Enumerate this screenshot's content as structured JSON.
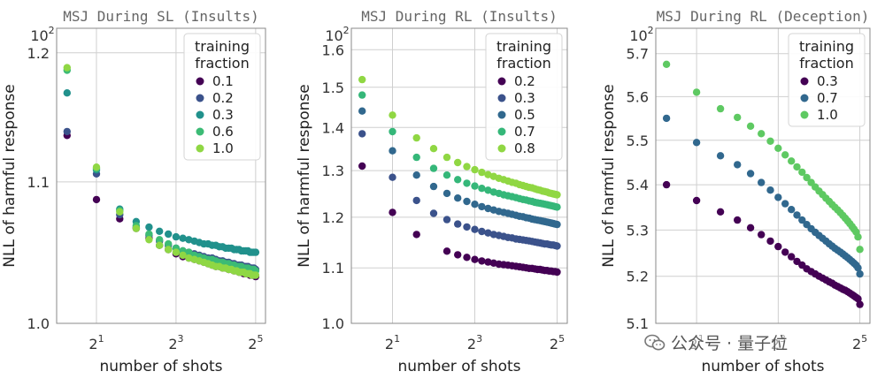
{
  "chart_data": [
    {
      "type": "scatter",
      "title": "MSJ During SL (Insults)",
      "xlabel": "number of shots",
      "ylabel": "NLL of harmful response",
      "xscale": "log2",
      "yscale": "log",
      "xlim": [
        1,
        38
      ],
      "ylim": [
        1.0,
        1.22
      ],
      "x_ticks": [
        {
          "value": 2,
          "label": "2^1"
        },
        {
          "value": 8,
          "label": "2^3"
        },
        {
          "value": 32,
          "label": "2^5"
        }
      ],
      "y_ticks": [
        {
          "value": 1.0,
          "label": "1.0"
        },
        {
          "value": 1.1,
          "label": "1.1"
        },
        {
          "value": 1.2,
          "label": "1.2"
        }
      ],
      "y_exponent_label": "10^2",
      "legend": {
        "title": [
          "training",
          "fraction"
        ],
        "position": "top-right"
      },
      "series": [
        {
          "name": "0.1",
          "color": "#440154",
          "x": [
            1.2,
            2,
            3,
            4,
            5,
            6,
            7,
            8,
            9,
            10,
            11,
            12,
            13,
            14,
            15,
            16,
            17,
            18,
            19,
            20,
            21,
            22,
            23,
            24,
            25,
            26,
            27,
            28,
            29,
            30,
            31,
            32
          ],
          "y": [
            1.135,
            1.087,
            1.073,
            1.066,
            1.059,
            1.054,
            1.051,
            1.048,
            1.046,
            1.045,
            1.044,
            1.043,
            1.042,
            1.041,
            1.04,
            1.039,
            1.039,
            1.038,
            1.038,
            1.037,
            1.037,
            1.036,
            1.036,
            1.035,
            1.035,
            1.034,
            1.034,
            1.034,
            1.033,
            1.033,
            1.033,
            1.032
          ]
        },
        {
          "name": "0.2",
          "color": "#3b528b",
          "x": [
            1.2,
            2,
            3,
            4,
            5,
            6,
            7,
            8,
            9,
            10,
            11,
            12,
            13,
            14,
            15,
            16,
            17,
            18,
            19,
            20,
            21,
            22,
            23,
            24,
            25,
            26,
            27,
            28,
            29,
            30,
            31,
            32
          ],
          "y": [
            1.138,
            1.106,
            1.076,
            1.067,
            1.061,
            1.057,
            1.054,
            1.052,
            1.05,
            1.049,
            1.048,
            1.047,
            1.046,
            1.045,
            1.045,
            1.044,
            1.043,
            1.043,
            1.042,
            1.042,
            1.041,
            1.041,
            1.04,
            1.04,
            1.04,
            1.039,
            1.039,
            1.039,
            1.038,
            1.038,
            1.038,
            1.037
          ]
        },
        {
          "name": "0.3",
          "color": "#21918c",
          "x": [
            1.2,
            2,
            3,
            4,
            5,
            6,
            7,
            8,
            9,
            10,
            11,
            12,
            13,
            14,
            15,
            16,
            17,
            18,
            19,
            20,
            21,
            22,
            23,
            24,
            25,
            26,
            27,
            28,
            29,
            30,
            31,
            32
          ],
          "y": [
            1.168,
            1.109,
            1.08,
            1.071,
            1.067,
            1.064,
            1.062,
            1.06,
            1.059,
            1.058,
            1.057,
            1.056,
            1.055,
            1.055,
            1.054,
            1.054,
            1.053,
            1.053,
            1.052,
            1.052,
            1.052,
            1.051,
            1.051,
            1.051,
            1.05,
            1.05,
            1.05,
            1.05,
            1.049,
            1.049,
            1.049,
            1.049
          ]
        },
        {
          "name": "0.6",
          "color": "#3cbb75",
          "x": [
            1.2,
            2,
            3,
            4,
            5,
            6,
            7,
            8,
            9,
            10,
            11,
            12,
            13,
            14,
            15,
            16,
            17,
            18,
            19,
            20,
            21,
            22,
            23,
            24,
            25,
            26,
            27,
            28,
            29,
            30,
            31,
            32
          ],
          "y": [
            1.186,
            1.11,
            1.079,
            1.068,
            1.062,
            1.058,
            1.055,
            1.052,
            1.05,
            1.049,
            1.047,
            1.046,
            1.045,
            1.044,
            1.044,
            1.043,
            1.042,
            1.042,
            1.041,
            1.041,
            1.04,
            1.04,
            1.039,
            1.039,
            1.039,
            1.038,
            1.038,
            1.038,
            1.037,
            1.037,
            1.037,
            1.036
          ]
        },
        {
          "name": "1.0",
          "color": "#8fd744",
          "x": [
            1.2,
            2,
            3,
            4,
            5,
            6,
            7,
            8,
            9,
            10,
            11,
            12,
            13,
            14,
            15,
            16,
            17,
            18,
            19,
            20,
            21,
            22,
            23,
            24,
            25,
            26,
            27,
            28,
            29,
            30,
            31,
            32
          ],
          "y": [
            1.188,
            1.111,
            1.078,
            1.066,
            1.058,
            1.054,
            1.051,
            1.049,
            1.047,
            1.045,
            1.044,
            1.043,
            1.042,
            1.041,
            1.04,
            1.039,
            1.039,
            1.038,
            1.038,
            1.037,
            1.037,
            1.036,
            1.036,
            1.035,
            1.035,
            1.035,
            1.034,
            1.034,
            1.034,
            1.033,
            1.033,
            1.033
          ]
        }
      ]
    },
    {
      "type": "scatter",
      "title": "MSJ During RL (Insults)",
      "xlabel": "number of shots",
      "ylabel": "NLL of harmful response",
      "xscale": "log2",
      "yscale": "log",
      "xlim": [
        1,
        38
      ],
      "ylim": [
        1.0,
        1.66
      ],
      "x_ticks": [
        {
          "value": 2,
          "label": "2^1"
        },
        {
          "value": 8,
          "label": "2^3"
        },
        {
          "value": 32,
          "label": "2^5"
        }
      ],
      "y_ticks": [
        {
          "value": 1.0,
          "label": "1.0"
        },
        {
          "value": 1.1,
          "label": "1.1"
        },
        {
          "value": 1.2,
          "label": "1.2"
        },
        {
          "value": 1.3,
          "label": "1.3"
        },
        {
          "value": 1.4,
          "label": "1.4"
        },
        {
          "value": 1.5,
          "label": "1.5"
        },
        {
          "value": 1.6,
          "label": "1.6"
        }
      ],
      "y_exponent_label": "10^2",
      "legend": {
        "title": [
          "training",
          "fraction"
        ],
        "position": "top-right"
      },
      "series": [
        {
          "name": "0.2",
          "color": "#440154",
          "x": [
            1.2,
            2,
            3,
            5,
            6,
            7,
            8,
            9,
            10,
            11,
            12,
            13,
            14,
            15,
            16,
            17,
            18,
            19,
            20,
            21,
            22,
            23,
            24,
            25,
            26,
            27,
            28,
            29,
            30,
            31,
            32
          ],
          "y": [
            1.31,
            1.21,
            1.165,
            1.132,
            1.125,
            1.12,
            1.116,
            1.113,
            1.111,
            1.109,
            1.107,
            1.106,
            1.105,
            1.104,
            1.103,
            1.102,
            1.101,
            1.1,
            1.099,
            1.099,
            1.098,
            1.097,
            1.097,
            1.096,
            1.095,
            1.095,
            1.094,
            1.094,
            1.093,
            1.093,
            1.092
          ]
        },
        {
          "name": "0.3",
          "color": "#3b528b",
          "x": [
            1.2,
            2,
            3,
            4,
            5,
            6,
            7,
            8,
            9,
            10,
            11,
            12,
            13,
            14,
            15,
            16,
            17,
            18,
            19,
            20,
            21,
            22,
            23,
            24,
            25,
            26,
            27,
            28,
            29,
            30,
            31,
            32
          ],
          "y": [
            1.385,
            1.285,
            1.235,
            1.208,
            1.195,
            1.186,
            1.18,
            1.175,
            1.171,
            1.168,
            1.165,
            1.163,
            1.161,
            1.159,
            1.158,
            1.156,
            1.155,
            1.154,
            1.153,
            1.152,
            1.151,
            1.15,
            1.149,
            1.148,
            1.147,
            1.146,
            1.146,
            1.145,
            1.144,
            1.144,
            1.143,
            1.142
          ]
        },
        {
          "name": "0.5",
          "color": "#31688e",
          "x": [
            1.2,
            2,
            3,
            4,
            5,
            6,
            7,
            8,
            9,
            10,
            11,
            12,
            13,
            14,
            15,
            16,
            17,
            18,
            19,
            20,
            21,
            22,
            23,
            24,
            25,
            26,
            27,
            28,
            29,
            30,
            31,
            32
          ],
          "y": [
            1.44,
            1.345,
            1.29,
            1.265,
            1.25,
            1.24,
            1.233,
            1.227,
            1.222,
            1.218,
            1.215,
            1.212,
            1.21,
            1.208,
            1.206,
            1.204,
            1.202,
            1.201,
            1.199,
            1.198,
            1.196,
            1.195,
            1.194,
            1.193,
            1.192,
            1.191,
            1.19,
            1.189,
            1.188,
            1.187,
            1.186,
            1.185
          ]
        },
        {
          "name": "0.7",
          "color": "#35b779",
          "x": [
            1.2,
            2,
            3,
            4,
            5,
            6,
            7,
            8,
            9,
            10,
            11,
            12,
            13,
            14,
            15,
            16,
            17,
            18,
            19,
            20,
            21,
            22,
            23,
            24,
            25,
            26,
            27,
            28,
            29,
            30,
            31,
            32
          ],
          "y": [
            1.48,
            1.39,
            1.33,
            1.305,
            1.29,
            1.28,
            1.272,
            1.266,
            1.261,
            1.257,
            1.253,
            1.25,
            1.247,
            1.245,
            1.243,
            1.241,
            1.239,
            1.237,
            1.236,
            1.234,
            1.233,
            1.231,
            1.23,
            1.229,
            1.228,
            1.227,
            1.226,
            1.225,
            1.224,
            1.223,
            1.222,
            1.221
          ]
        },
        {
          "name": "0.8",
          "color": "#90d743",
          "x": [
            1.2,
            2,
            3,
            4,
            5,
            6,
            7,
            8,
            9,
            10,
            11,
            12,
            13,
            14,
            15,
            16,
            17,
            18,
            19,
            20,
            21,
            22,
            23,
            24,
            25,
            26,
            27,
            28,
            29,
            30,
            31,
            32
          ],
          "y": [
            1.52,
            1.43,
            1.375,
            1.35,
            1.33,
            1.318,
            1.309,
            1.302,
            1.296,
            1.291,
            1.287,
            1.283,
            1.28,
            1.277,
            1.274,
            1.272,
            1.269,
            1.267,
            1.265,
            1.263,
            1.262,
            1.26,
            1.258,
            1.257,
            1.255,
            1.254,
            1.253,
            1.251,
            1.25,
            1.249,
            1.248,
            1.247
          ]
        }
      ]
    },
    {
      "type": "scatter",
      "title": "MSJ During RL (Deception)",
      "xlabel": "number of shots",
      "ylabel": "NLL of harmful response",
      "xscale": "log2",
      "yscale": "log",
      "xlim": [
        1,
        38
      ],
      "ylim": [
        5.1,
        5.76
      ],
      "x_ticks": [
        {
          "value": 2,
          "label": "2^1"
        },
        {
          "value": 8,
          "label": "2^3"
        },
        {
          "value": 32,
          "label": "2^5"
        }
      ],
      "y_ticks": [
        {
          "value": 5.1,
          "label": "5.1"
        },
        {
          "value": 5.2,
          "label": "5.2"
        },
        {
          "value": 5.3,
          "label": "5.3"
        },
        {
          "value": 5.4,
          "label": "5.4"
        },
        {
          "value": 5.5,
          "label": "5.5"
        },
        {
          "value": 5.6,
          "label": "5.6"
        },
        {
          "value": 5.7,
          "label": "5.7"
        }
      ],
      "y_exponent_label": "10^2",
      "legend": {
        "title": [
          "training",
          "fraction"
        ],
        "position": "top-right"
      },
      "series": [
        {
          "name": "0.3",
          "color": "#440154",
          "x": [
            1.2,
            2,
            3,
            4,
            5,
            6,
            7,
            8,
            9,
            10,
            11,
            12,
            13,
            14,
            15,
            16,
            17,
            18,
            19,
            20,
            21,
            22,
            23,
            24,
            25,
            26,
            27,
            28,
            29,
            30,
            31,
            32
          ],
          "y": [
            5.4,
            5.365,
            5.34,
            5.322,
            5.305,
            5.29,
            5.276,
            5.264,
            5.252,
            5.242,
            5.232,
            5.224,
            5.216,
            5.21,
            5.205,
            5.2,
            5.196,
            5.192,
            5.188,
            5.185,
            5.181,
            5.178,
            5.175,
            5.172,
            5.17,
            5.167,
            5.164,
            5.161,
            5.158,
            5.155,
            5.152,
            5.14
          ]
        },
        {
          "name": "0.7",
          "color": "#31688e",
          "x": [
            1.2,
            2,
            3,
            4,
            5,
            6,
            7,
            8,
            9,
            10,
            11,
            12,
            13,
            14,
            15,
            16,
            17,
            18,
            19,
            20,
            21,
            22,
            23,
            24,
            25,
            26,
            27,
            28,
            29,
            30,
            31,
            32
          ],
          "y": [
            5.55,
            5.495,
            5.465,
            5.445,
            5.425,
            5.405,
            5.388,
            5.372,
            5.358,
            5.345,
            5.333,
            5.322,
            5.312,
            5.303,
            5.295,
            5.288,
            5.282,
            5.276,
            5.27,
            5.265,
            5.26,
            5.256,
            5.252,
            5.248,
            5.244,
            5.24,
            5.236,
            5.232,
            5.228,
            5.224,
            5.218,
            5.205
          ]
        },
        {
          "name": "1.0",
          "color": "#5ec962",
          "x": [
            1.2,
            2,
            3,
            4,
            5,
            6,
            7,
            8,
            9,
            10,
            11,
            12,
            13,
            14,
            15,
            16,
            17,
            18,
            19,
            20,
            21,
            22,
            23,
            24,
            25,
            26,
            27,
            28,
            29,
            30,
            31,
            32
          ],
          "y": [
            5.675,
            5.61,
            5.572,
            5.552,
            5.532,
            5.515,
            5.498,
            5.482,
            5.467,
            5.453,
            5.44,
            5.428,
            5.416,
            5.405,
            5.395,
            5.386,
            5.378,
            5.37,
            5.363,
            5.356,
            5.35,
            5.344,
            5.338,
            5.332,
            5.326,
            5.32,
            5.314,
            5.308,
            5.302,
            5.296,
            5.285,
            5.258
          ]
        }
      ]
    }
  ],
  "watermark": {
    "text": "公众号 · 量子位",
    "icon": "wechat-logo-icon"
  }
}
